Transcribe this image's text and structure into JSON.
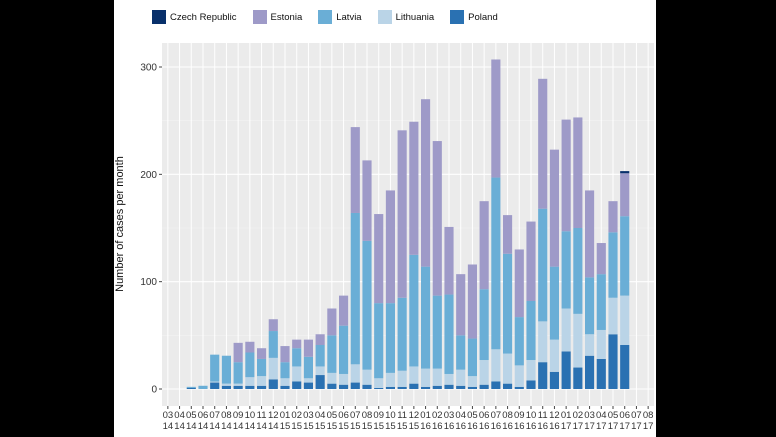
{
  "chart_data": {
    "type": "bar",
    "stacked": true,
    "title": "",
    "xlabel": "",
    "ylabel": "Number of cases per month",
    "ylim": [
      0,
      320
    ],
    "yticks": [
      0,
      100,
      200,
      300
    ],
    "grid": true,
    "legend_position": "top",
    "categories": [
      [
        "03",
        "14"
      ],
      [
        "04",
        "14"
      ],
      [
        "05",
        "14"
      ],
      [
        "06",
        "14"
      ],
      [
        "07",
        "14"
      ],
      [
        "08",
        "14"
      ],
      [
        "09",
        "14"
      ],
      [
        "10",
        "14"
      ],
      [
        "11",
        "14"
      ],
      [
        "12",
        "14"
      ],
      [
        "01",
        "15"
      ],
      [
        "02",
        "15"
      ],
      [
        "03",
        "15"
      ],
      [
        "04",
        "15"
      ],
      [
        "05",
        "15"
      ],
      [
        "06",
        "15"
      ],
      [
        "07",
        "15"
      ],
      [
        "08",
        "15"
      ],
      [
        "09",
        "15"
      ],
      [
        "10",
        "15"
      ],
      [
        "11",
        "15"
      ],
      [
        "12",
        "15"
      ],
      [
        "01",
        "16"
      ],
      [
        "02",
        "16"
      ],
      [
        "03",
        "16"
      ],
      [
        "04",
        "16"
      ],
      [
        "05",
        "16"
      ],
      [
        "06",
        "16"
      ],
      [
        "07",
        "16"
      ],
      [
        "08",
        "16"
      ],
      [
        "09",
        "16"
      ],
      [
        "10",
        "16"
      ],
      [
        "11",
        "16"
      ],
      [
        "12",
        "16"
      ],
      [
        "01",
        "17"
      ],
      [
        "02",
        "17"
      ],
      [
        "03",
        "17"
      ],
      [
        "04",
        "17"
      ],
      [
        "05",
        "17"
      ],
      [
        "06",
        "17"
      ],
      [
        "07",
        "17"
      ],
      [
        "08",
        "17"
      ]
    ],
    "series": [
      {
        "name": "Poland",
        "color": "#2a71b2",
        "values": [
          0,
          0,
          1,
          0,
          6,
          3,
          3,
          3,
          3,
          9,
          3,
          7,
          6,
          13,
          5,
          4,
          6,
          4,
          1,
          2,
          2,
          5,
          2,
          3,
          4,
          3,
          2,
          4,
          7,
          5,
          2,
          8,
          25,
          16,
          35,
          20,
          31,
          28,
          51,
          41,
          0,
          0
        ]
      },
      {
        "name": "Lithuania",
        "color": "#bad4e7",
        "values": [
          0,
          0,
          0,
          0,
          1,
          2,
          2,
          8,
          9,
          20,
          7,
          14,
          4,
          8,
          10,
          10,
          17,
          14,
          9,
          13,
          15,
          16,
          17,
          16,
          10,
          15,
          10,
          23,
          30,
          28,
          20,
          19,
          38,
          30,
          40,
          50,
          20,
          27,
          34,
          46,
          0,
          0
        ]
      },
      {
        "name": "Latvia",
        "color": "#6aaed6",
        "values": [
          0,
          0,
          1,
          3,
          25,
          26,
          20,
          23,
          16,
          25,
          15,
          17,
          20,
          20,
          35,
          45,
          141,
          120,
          70,
          65,
          68,
          104,
          95,
          68,
          74,
          32,
          35,
          66,
          160,
          93,
          45,
          55,
          105,
          68,
          72,
          80,
          53,
          52,
          61,
          74,
          0,
          0
        ]
      },
      {
        "name": "Estonia",
        "color": "#9e9ac8",
        "values": [
          0,
          0,
          0,
          0,
          0,
          0,
          18,
          10,
          10,
          11,
          15,
          8,
          16,
          10,
          25,
          28,
          80,
          75,
          83,
          105,
          156,
          124,
          156,
          144,
          63,
          57,
          69,
          82,
          110,
          36,
          63,
          74,
          121,
          109,
          104,
          103,
          81,
          29,
          29,
          40,
          0,
          0
        ]
      },
      {
        "name": "Czech Republic",
        "color": "#08306b",
        "values": [
          0,
          0,
          0,
          0,
          0,
          0,
          0,
          0,
          0,
          0,
          0,
          0,
          0,
          0,
          0,
          0,
          0,
          0,
          0,
          0,
          0,
          0,
          0,
          0,
          0,
          0,
          0,
          0,
          0,
          0,
          0,
          0,
          0,
          0,
          0,
          0,
          0,
          0,
          0,
          2,
          0,
          0
        ]
      }
    ],
    "legend_order": [
      "Czech Republic",
      "Estonia",
      "Latvia",
      "Lithuania",
      "Poland"
    ]
  }
}
